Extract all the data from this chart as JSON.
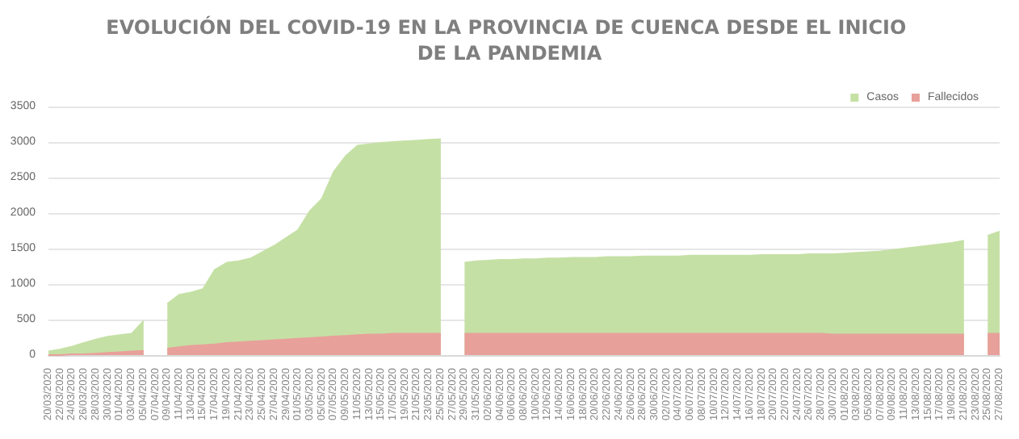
{
  "chart_data": {
    "type": "area",
    "title": "EVOLUCIÓN DEL COVID-19 EN LA PROVINCIA DE CUENCA DESDE EL INICIO DE LA PANDEMIA",
    "categories": [
      "20/03/2020",
      "22/03/2020",
      "24/03/2020",
      "26/03/2020",
      "28/03/2020",
      "30/03/2020",
      "01/04/2020",
      "03/04/2020",
      "05/04/2020",
      "07/04/2020",
      "09/04/2020",
      "11/04/2020",
      "13/04/2020",
      "15/04/2020",
      "17/04/2020",
      "19/04/2020",
      "21/04/2020",
      "23/04/2020",
      "25/04/2020",
      "27/04/2020",
      "29/04/2020",
      "01/05/2020",
      "03/05/2020",
      "05/05/2020",
      "07/05/2020",
      "09/05/2020",
      "11/05/2020",
      "13/05/2020",
      "15/05/2020",
      "17/05/2020",
      "19/05/2020",
      "21/05/2020",
      "23/05/2020",
      "25/05/2020",
      "27/05/2020",
      "29/05/2020",
      "31/05/2020",
      "02/06/2020",
      "04/06/2020",
      "06/06/2020",
      "08/06/2020",
      "10/06/2020",
      "12/06/2020",
      "14/06/2020",
      "16/06/2020",
      "18/06/2020",
      "20/06/2020",
      "22/06/2020",
      "24/06/2020",
      "26/06/2020",
      "28/06/2020",
      "30/06/2020",
      "02/07/2020",
      "04/07/2020",
      "06/07/2020",
      "08/07/2020",
      "10/07/2020",
      "12/07/2020",
      "14/07/2020",
      "16/07/2020",
      "18/07/2020",
      "20/07/2020",
      "22/07/2020",
      "24/07/2020",
      "26/07/2020",
      "28/07/2020",
      "30/07/2020",
      "01/08/2020",
      "03/08/2020",
      "05/08/2020",
      "07/08/2020",
      "09/08/2020",
      "11/08/2020",
      "13/08/2020",
      "15/08/2020",
      "17/08/2020",
      "19/08/2020",
      "21/08/2020",
      "23/08/2020",
      "25/08/2020",
      "27/08/2020"
    ],
    "series": [
      {
        "name": "Casos",
        "color": "#c5e0a5",
        "values": [
          50,
          80,
          120,
          170,
          220,
          260,
          280,
          300,
          480,
          null,
          720,
          850,
          880,
          930,
          1200,
          1300,
          1320,
          1360,
          1450,
          1540,
          1650,
          1760,
          2030,
          2200,
          2580,
          2800,
          2950,
          2970,
          2990,
          3000,
          3010,
          3020,
          3030,
          3040,
          null,
          1300,
          1320,
          1330,
          1340,
          1340,
          1350,
          1350,
          1360,
          1360,
          1370,
          1370,
          1370,
          1380,
          1380,
          1380,
          1390,
          1390,
          1390,
          1390,
          1400,
          1400,
          1400,
          1400,
          1400,
          1400,
          1410,
          1410,
          1410,
          1410,
          1420,
          1420,
          1420,
          1430,
          1440,
          1450,
          1460,
          1480,
          1500,
          1520,
          1540,
          1560,
          1580,
          1610,
          null,
          1680,
          1740
        ]
      },
      {
        "name": "Fallecidos",
        "color": "#e8a09a",
        "values": [
          0,
          0,
          10,
          10,
          20,
          30,
          40,
          50,
          60,
          null,
          90,
          110,
          130,
          140,
          150,
          170,
          180,
          190,
          200,
          210,
          220,
          230,
          240,
          250,
          260,
          270,
          280,
          290,
          290,
          300,
          300,
          300,
          300,
          300,
          null,
          300,
          300,
          300,
          300,
          300,
          300,
          300,
          300,
          300,
          300,
          300,
          300,
          300,
          300,
          300,
          300,
          300,
          300,
          300,
          300,
          300,
          300,
          300,
          300,
          300,
          300,
          300,
          300,
          300,
          300,
          300,
          290,
          290,
          290,
          290,
          290,
          290,
          290,
          290,
          290,
          290,
          290,
          290,
          null,
          300,
          300
        ]
      }
    ],
    "ylim": [
      0,
      3500
    ],
    "yticks": [
      0,
      500,
      1000,
      1500,
      2000,
      2500,
      3000,
      3500
    ],
    "grid": "y",
    "legend": "top right"
  }
}
